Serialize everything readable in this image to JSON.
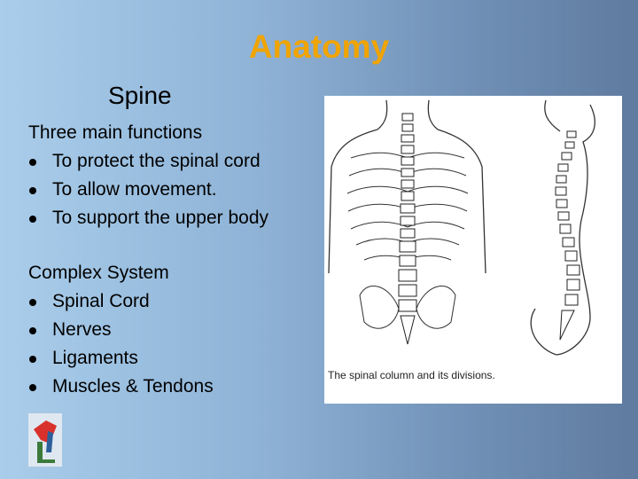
{
  "title": "Anatomy",
  "subtitle": "Spine",
  "sections": [
    {
      "heading": "Three main functions",
      "items": [
        "To protect the spinal cord",
        "To allow movement.",
        "To support the upper body"
      ]
    },
    {
      "heading": "Complex System",
      "items": [
        "Spinal Cord",
        "Nerves",
        "Ligaments",
        "Muscles & Tendons"
      ]
    }
  ],
  "figure": {
    "caption": "The spinal column and its divisions."
  }
}
